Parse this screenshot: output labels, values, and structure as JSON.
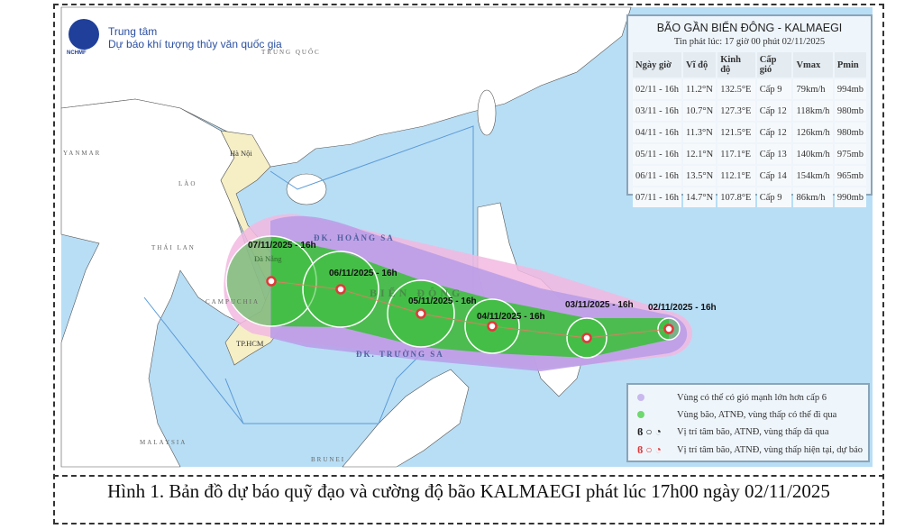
{
  "header": {
    "logo_text": "NCHMF",
    "org_line1": "Trung tâm",
    "org_line2": "Dự báo khí tượng thủy văn quốc gia"
  },
  "info_box": {
    "title": "BÃO GẦN BIỂN ĐÔNG - KALMAEGI",
    "issued": "Tin phát lúc: 17 giờ 00 phút 02/11/2025",
    "columns": [
      "Ngày giờ",
      "Vĩ độ",
      "Kinh độ",
      "Cấp gió",
      "Vmax",
      "Pmin"
    ],
    "rows": [
      [
        "02/11 - 16h",
        "11.2°N",
        "132.5°E",
        "Cấp 9",
        "79km/h",
        "994mb"
      ],
      [
        "03/11 - 16h",
        "10.7°N",
        "127.3°E",
        "Cấp 12",
        "118km/h",
        "980mb"
      ],
      [
        "04/11 - 16h",
        "11.3°N",
        "121.5°E",
        "Cấp 12",
        "126km/h",
        "980mb"
      ],
      [
        "05/11 - 16h",
        "12.1°N",
        "117.1°E",
        "Cấp 13",
        "140km/h",
        "975mb"
      ],
      [
        "06/11 - 16h",
        "13.5°N",
        "112.1°E",
        "Cấp 14",
        "154km/h",
        "965mb"
      ],
      [
        "07/11 - 16h",
        "14.7°N",
        "107.8°E",
        "Cấp 9",
        "86km/h",
        "990mb"
      ]
    ]
  },
  "map_labels": {
    "countries": [
      "TRUNG QUỐC",
      "YANMAR",
      "LÀO",
      "THÁI LAN",
      "CAMPUCHIA",
      "MALAYSIA",
      "BRUNEI"
    ],
    "cities": [
      "Hà Nội",
      "Đà Nẵng",
      "TP.HCM"
    ],
    "seas": [
      "ĐK. HOÀNG SA",
      "BIỂN ĐÔNG",
      "ĐK. TRƯỜNG SA"
    ]
  },
  "forecast_points": [
    "07/11/2025 - 16h",
    "06/11/2025 - 16h",
    "05/11/2025 - 16h",
    "04/11/2025 - 16h",
    "03/11/2025 - 16h",
    "02/11/2025 - 16h"
  ],
  "legend": [
    {
      "text": "Vùng có thể có gió mạnh lớn hơn cấp 6",
      "color": "#c9b8ee"
    },
    {
      "text": "Vùng bão, ATNĐ, vùng thấp có thể đi qua",
      "color": "#6fd86f"
    },
    {
      "text": "Vị trí tâm bão, ATNĐ, vùng thấp đã qua",
      "color": "#222222"
    },
    {
      "text": "Vị trí tâm bão, ATNĐ, vùng thấp hiện tại, dự báo",
      "color": "#e03a3a"
    }
  ],
  "colors": {
    "sea": "#b8def5",
    "vietnam": "#f6efc6",
    "wind_zone": "#b89ce8",
    "storm_zone": "#3fbf3f",
    "pink_zone": "#f2b8e0",
    "track": "#e03a3a"
  },
  "caption": "Hình 1. Bản đồ dự báo quỹ đạo và cường độ bão KALMAEGI phát lúc 17h00 ngày 02/11/2025"
}
